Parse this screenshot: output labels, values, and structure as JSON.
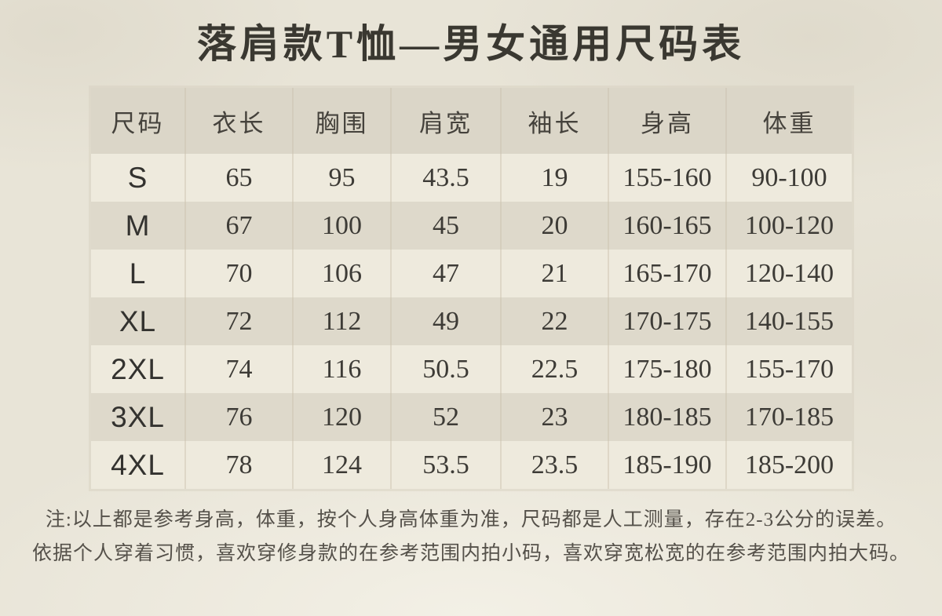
{
  "title": "落肩款T恤—男女通用尺码表",
  "table": {
    "headers": [
      "尺码",
      "衣长",
      "胸围",
      "肩宽",
      "袖长",
      "身高",
      "体重"
    ],
    "rows": [
      [
        "S",
        "65",
        "95",
        "43.5",
        "19",
        "155-160",
        "90-100"
      ],
      [
        "M",
        "67",
        "100",
        "45",
        "20",
        "160-165",
        "100-120"
      ],
      [
        "L",
        "70",
        "106",
        "47",
        "21",
        "165-170",
        "120-140"
      ],
      [
        "XL",
        "72",
        "112",
        "49",
        "22",
        "170-175",
        "140-155"
      ],
      [
        "2XL",
        "74",
        "116",
        "50.5",
        "22.5",
        "175-180",
        "155-170"
      ],
      [
        "3XL",
        "76",
        "120",
        "52",
        "23",
        "180-185",
        "170-185"
      ],
      [
        "4XL",
        "78",
        "124",
        "53.5",
        "23.5",
        "185-190",
        "185-200"
      ]
    ]
  },
  "note": {
    "line1": "注:以上都是参考身高，体重，按个人身高体重为准，尺码都是人工测量，存在2-3公分的误差。",
    "line2": "依据个人穿着习惯，喜欢穿修身款的在参考范围内拍小码，喜欢穿宽松宽的在参考范围内拍大码。"
  },
  "colors": {
    "page_bg": "#e8e4d7",
    "header_row_bg": "#dbd6c8",
    "row_light_bg": "#eeeadd",
    "row_dark_bg": "#ded9cb",
    "title_text": "#3a3831",
    "header_text": "#45423c",
    "cell_text": "#3d3b36",
    "note_text": "#55514a"
  },
  "chart_data": {
    "type": "table",
    "title": "落肩款T恤—男女通用尺码表",
    "columns": [
      "尺码",
      "衣长",
      "胸围",
      "肩宽",
      "袖长",
      "身高",
      "体重"
    ],
    "rows": [
      {
        "尺码": "S",
        "衣长": 65,
        "胸围": 95,
        "肩宽": 43.5,
        "袖长": 19,
        "身高": "155-160",
        "体重": "90-100"
      },
      {
        "尺码": "M",
        "衣长": 67,
        "胸围": 100,
        "肩宽": 45,
        "袖长": 20,
        "身高": "160-165",
        "体重": "100-120"
      },
      {
        "尺码": "L",
        "衣长": 70,
        "胸围": 106,
        "肩宽": 47,
        "袖长": 21,
        "身高": "165-170",
        "体重": "120-140"
      },
      {
        "尺码": "XL",
        "衣长": 72,
        "胸围": 112,
        "肩宽": 49,
        "袖长": 22,
        "身高": "170-175",
        "体重": "140-155"
      },
      {
        "尺码": "2XL",
        "衣长": 74,
        "胸围": 116,
        "肩宽": 50.5,
        "袖长": 22.5,
        "身高": "175-180",
        "体重": "155-170"
      },
      {
        "尺码": "3XL",
        "衣长": 76,
        "胸围": 120,
        "肩宽": 52,
        "袖长": 23,
        "身高": "180-185",
        "体重": "170-185"
      },
      {
        "尺码": "4XL",
        "衣长": 78,
        "胸围": 124,
        "肩宽": 53.5,
        "袖长": 23.5,
        "身高": "185-190",
        "体重": "185-200"
      }
    ]
  }
}
